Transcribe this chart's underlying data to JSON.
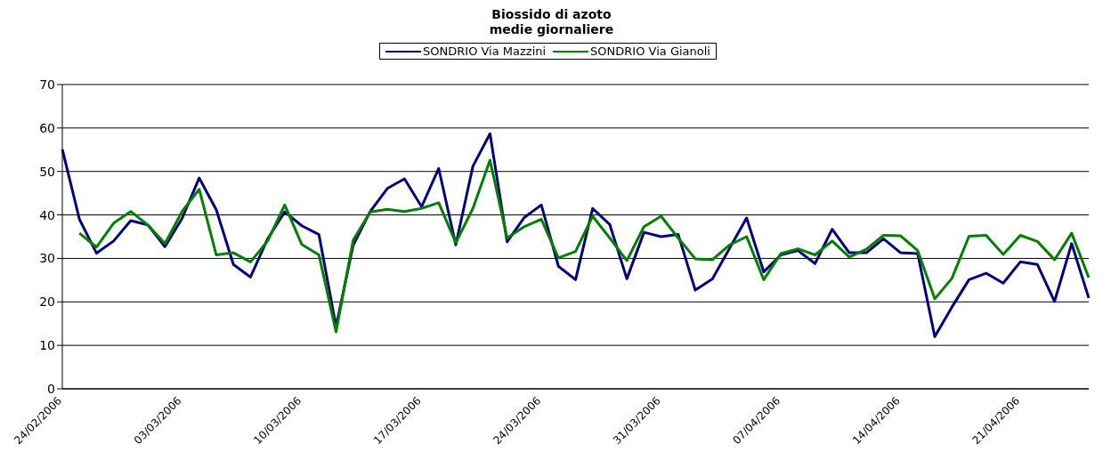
{
  "chart_data": {
    "type": "line",
    "title": "Biossido di azoto\nmedie  giornaliere",
    "categories": [
      "24/02/2006",
      null,
      null,
      null,
      null,
      null,
      null,
      "03/03/2006",
      null,
      null,
      null,
      null,
      null,
      null,
      "10/03/2006",
      null,
      null,
      null,
      null,
      null,
      null,
      "17/03/2006",
      null,
      null,
      null,
      null,
      null,
      null,
      "24/03/2006",
      null,
      null,
      null,
      null,
      null,
      null,
      "31/03/2006",
      null,
      null,
      null,
      null,
      null,
      null,
      "07/04/2006",
      null,
      null,
      null,
      null,
      null,
      null,
      "14/04/2006",
      null,
      null,
      null,
      null,
      null,
      null,
      "21/04/2006",
      null,
      null,
      null,
      null
    ],
    "series": [
      {
        "name": "SONDRIO Via  Mazzini",
        "color": "#000080",
        "values": [
          55.1,
          39,
          31.2,
          34,
          38.7,
          37.7,
          32.7,
          39.2,
          48.5,
          41.2,
          28.6,
          25.7,
          34.5,
          40.7,
          37.5,
          35.5,
          14.3,
          33,
          40.8,
          46.1,
          48.3,
          41.9,
          50.7,
          33.1,
          51.2,
          58.7,
          33.8,
          39.4,
          42.3,
          28.2,
          25.1,
          41.5,
          37.8,
          25.3,
          36,
          35,
          35.5,
          22.7,
          25.3,
          32.3,
          39.3,
          26.9,
          30.8,
          31.8,
          28.8,
          36.7,
          31.3,
          31.3,
          34.5,
          31.3,
          31.1,
          12,
          18.8,
          25.1,
          26.6,
          24.3,
          29.2,
          28.6,
          20.1,
          33.4,
          20.9
        ]
      },
      {
        "name": "SONDRIO Via Gianoli",
        "color": "#008000",
        "values": [
          null,
          35.8,
          32.6,
          38.1,
          40.8,
          37.7,
          33.4,
          40.8,
          45.9,
          30.8,
          31.3,
          29.2,
          34,
          42.3,
          33.2,
          30.8,
          13.1,
          34.2,
          40.7,
          41.3,
          40.8,
          41.5,
          42.8,
          33.6,
          41.5,
          52.6,
          34.7,
          37.3,
          39,
          30.1,
          31.6,
          39.7,
          34.7,
          29.5,
          37.3,
          39.7,
          34.7,
          29.9,
          29.7,
          33.1,
          35,
          25.1,
          31.1,
          32.2,
          30.8,
          34,
          30.3,
          32.1,
          35.3,
          35.2,
          31.8,
          20.7,
          25.4,
          35.1,
          35.3,
          30.9,
          35.3,
          33.9,
          29.7,
          35.8,
          25.6
        ]
      }
    ],
    "ylim": [
      0,
      70
    ],
    "yticks": [
      0,
      10,
      20,
      30,
      40,
      50,
      60,
      70
    ],
    "grid": "y",
    "legend": "top",
    "marker": "none",
    "line_style": "solid"
  }
}
